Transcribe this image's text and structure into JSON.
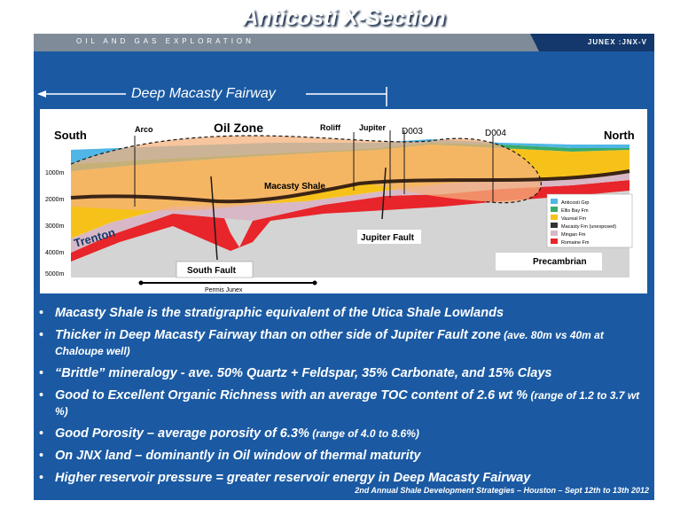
{
  "header": {
    "section_label": "OIL AND GAS EXPLORATION",
    "brand": "JUNEX :JNX-V"
  },
  "title": "Anticosti X-Section",
  "fairway_label": "Deep Macasty Fairway",
  "cross_section": {
    "south": "South",
    "north": "North",
    "wells": {
      "arco": "Arco",
      "roliff": "Roliff",
      "jupiter": "Jupiter",
      "d003": "D003",
      "d004": "D004"
    },
    "oil_zone": "Oil Zone",
    "macasty_shale": "Macasty Shale",
    "trenton": "Trenton",
    "jupiter_fault": "Jupiter Fault",
    "south_fault": "South Fault",
    "precambrian": "Precambrian",
    "permis": "Permis Junex",
    "depths": [
      "1000m",
      "2000m",
      "3000m",
      "4000m",
      "5000m"
    ],
    "legend": [
      {
        "label": "Anticosti Grp",
        "color": "#4fb6e6"
      },
      {
        "label": "Ellis Bay Fm",
        "color": "#3aaa6a"
      },
      {
        "label": "Vaureal Fm",
        "color": "#f6c21a"
      },
      {
        "label": "Macasty Fm (unexposed)",
        "color": "#333333"
      },
      {
        "label": "Mingan Fm",
        "color": "#d8b8c6"
      },
      {
        "label": "Romaine Fm",
        "color": "#e8252a"
      }
    ]
  },
  "bullets": [
    {
      "main": "Macasty Shale is the stratigraphic equivalent of the Utica Shale Lowlands",
      "note": ""
    },
    {
      "main": "Thicker in Deep Macasty Fairway than on other side of Jupiter Fault zone",
      "note": " (ave. 80m vs 40m at Chaloupe well)"
    },
    {
      "main": "“Brittle” mineralogy - ave. 50% Quartz + Feldspar, 35% Carbonate, and 15% Clays",
      "note": ""
    },
    {
      "main": "Good to Excellent Organic Richness with an average TOC content of 2.6 wt %",
      "note": " (range of 1.2 to 3.7 wt %)"
    },
    {
      "main": "Good Porosity – average porosity of 6.3%",
      "note": " (range of 4.0 to 8.6%)"
    },
    {
      "main": "On JNX land – dominantly in Oil window of thermal maturity",
      "note": ""
    },
    {
      "main": "Higher reservoir pressure = greater reservoir energy in Deep Macasty Fairway",
      "note": ""
    }
  ],
  "footer": "2nd Annual Shale Development Strategies – Houston – Sept 12th to 13th 2012"
}
